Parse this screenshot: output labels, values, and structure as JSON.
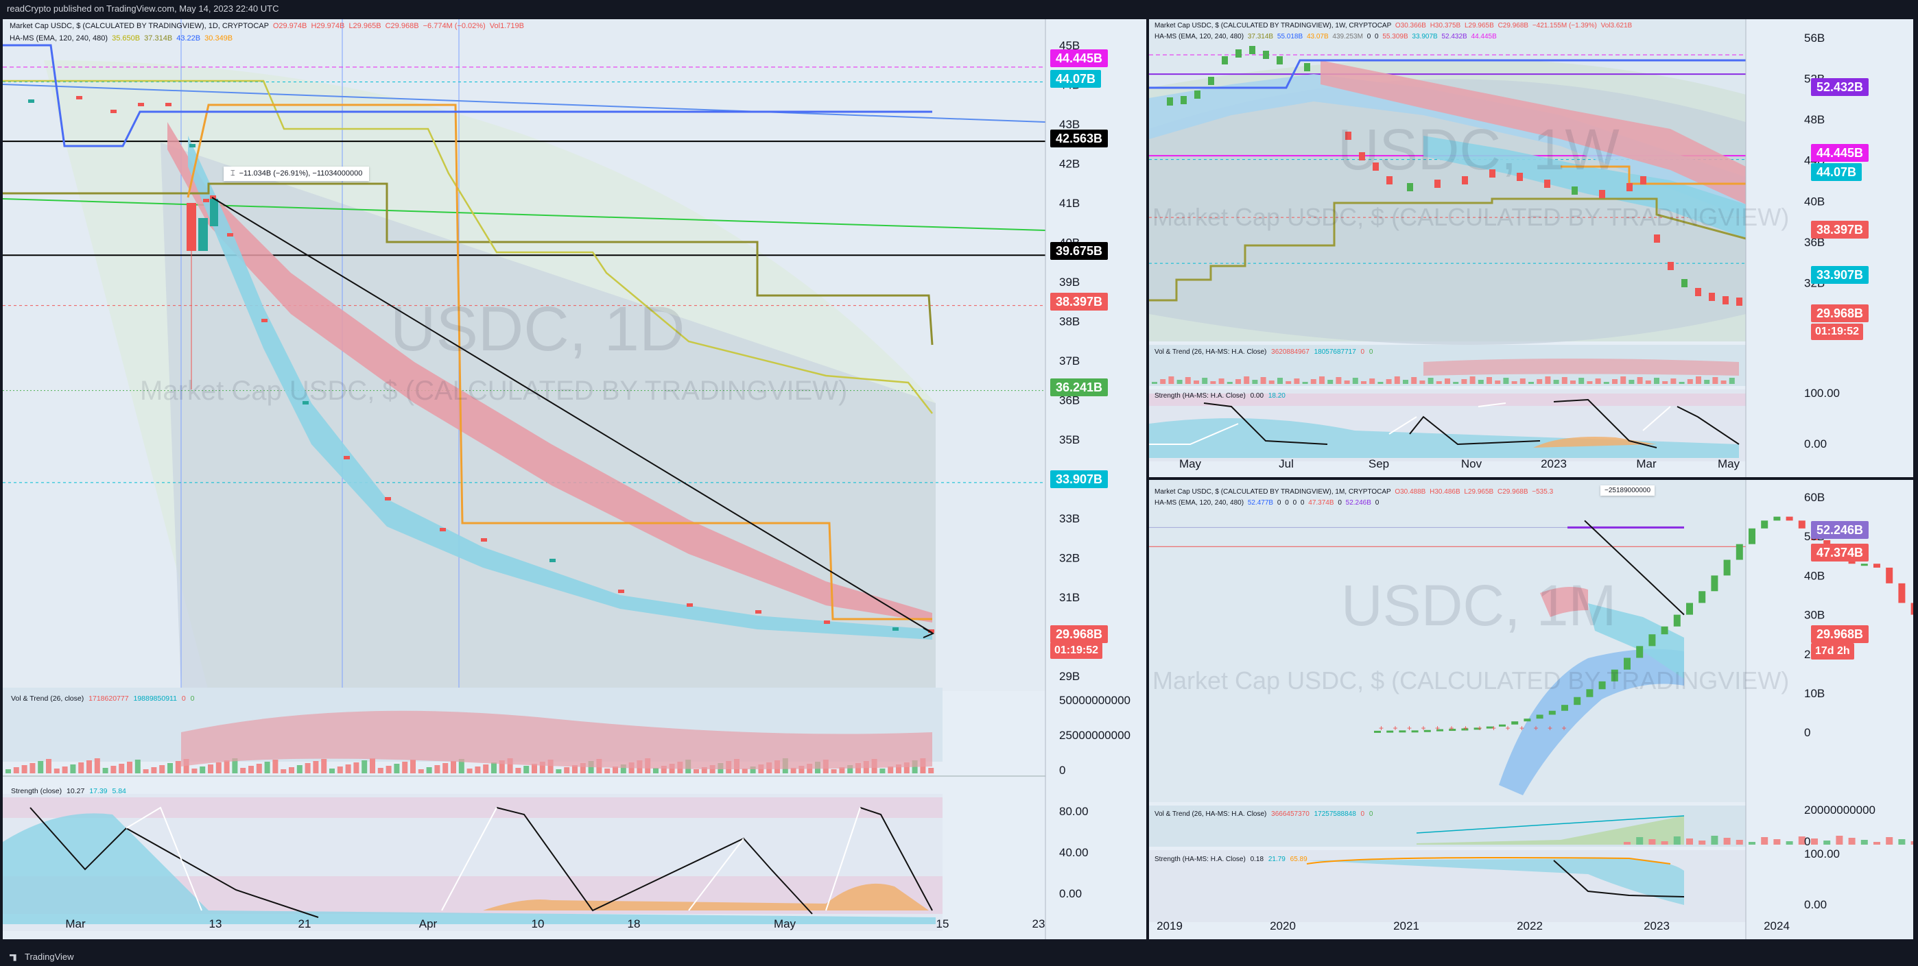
{
  "topbar": {
    "text": "readCrypto published on TradingView.com, May 14, 2023 22:40 UTC"
  },
  "bottombar": {
    "text": "TradingView"
  },
  "colors": {
    "background": "#131722",
    "panel": "#e6eef6",
    "up": "#26a69a",
    "down": "#ef5350",
    "magenta": "#e91eef",
    "cyan": "#00bcd4",
    "black": "#000000",
    "red_tag": "#f05a5a",
    "green_tag": "#4caf50",
    "purple": "#8a2be2",
    "orange": "#ff9800",
    "blue": "#2962ff"
  },
  "daily": {
    "header": {
      "symbol": "Market Cap USDC, $ (CALCULATED BY TRADINGVIEW), 1D, CRYPTOCAP",
      "o": "O29.974B",
      "h": "H29.974B",
      "l": "L29.965B",
      "c": "C29.968B",
      "chg": "−6.774M (−0.02%)",
      "vol": "Vol1.719B"
    },
    "hams": {
      "label": "HA-MS (EMA, 120, 240, 480)",
      "v1": "35.650B",
      "v2": "37.314B",
      "v3": "43.22B",
      "v4": "30.349B"
    },
    "watermark_big": "USDC, 1D",
    "watermark_small": "Market Cap USDC, $ (CALCULATED BY TRADINGVIEW)",
    "tooltip": "−11.034B (−26.91%), −11034000000",
    "vol_header": {
      "label": "Vol & Trend (26, close)",
      "v1": "1718620777",
      "v2": "19889850911",
      "v3": "0",
      "v4": "0"
    },
    "strength_header": {
      "label": "Strength (close)",
      "v1": "10.27",
      "v2": "17.39",
      "v3": "5.84"
    },
    "price_axis": [
      "45B",
      "44B",
      "43B",
      "42B",
      "41B",
      "40B",
      "39B",
      "38B",
      "37B",
      "36B",
      "35B",
      "34B",
      "33B",
      "32B",
      "31B",
      "30B",
      "29B"
    ],
    "vol_axis": [
      "50000000000",
      "25000000000",
      "0"
    ],
    "strength_axis": [
      "80.00",
      "40.00",
      "0.00"
    ],
    "time_axis": [
      "Mar",
      "13",
      "21",
      "Apr",
      "10",
      "18",
      "May",
      "15",
      "23"
    ],
    "tags": [
      {
        "text": "44.445B",
        "color": "#e91eef"
      },
      {
        "text": "44.07B",
        "color": "#00bcd4"
      },
      {
        "text": "42.563B",
        "color": "#000000"
      },
      {
        "text": "39.675B",
        "color": "#000000"
      },
      {
        "text": "38.397B",
        "color": "#f05a5a"
      },
      {
        "text": "36.241B",
        "color": "#4caf50"
      },
      {
        "text": "33.907B",
        "color": "#00bcd4"
      },
      {
        "text": "29.968B",
        "color": "#f05a5a"
      }
    ],
    "countdown": "01:19:52"
  },
  "weekly": {
    "header": {
      "symbol": "Market Cap USDC, $ (CALCULATED BY TRADINGVIEW), 1W, CRYPTOCAP",
      "o": "O30.366B",
      "h": "H30.375B",
      "l": "L29.965B",
      "c": "C29.968B",
      "chg": "−421.155M (−1.39%)",
      "vol": "Vol3.621B"
    },
    "hams": {
      "label": "HA-MS (EMA, 120, 240, 480)",
      "v1": "37.314B",
      "v2": "55.018B",
      "v3": "43.07B",
      "v4": "439.253M",
      "v5": "0",
      "v6": "0",
      "v7": "55.309B",
      "v8": "33.907B",
      "v9": "52.432B",
      "v10": "44.445B"
    },
    "watermark_big": "USDC, 1W",
    "watermark_small": "Market Cap USDC, $ (CALCULATED BY TRADINGVIEW)",
    "vol_header": {
      "label": "Vol & Trend (26, HA-MS: H.A. Close)",
      "v1": "3620884967",
      "v2": "18057687717",
      "v3": "0",
      "v4": "0"
    },
    "strength_header": {
      "label": "Strength (HA-MS: H.A. Close)",
      "v1": "0.00",
      "v2": "18.20"
    },
    "price_axis": [
      "56B",
      "52B",
      "48B",
      "44B",
      "40B",
      "36B",
      "32B"
    ],
    "strength_axis": [
      "100.00",
      "0.00"
    ],
    "time_axis": [
      "May",
      "Jul",
      "Sep",
      "Nov",
      "2023",
      "Mar",
      "May"
    ],
    "tags": [
      {
        "text": "52.432B",
        "color": "#8a2be2"
      },
      {
        "text": "44.445B",
        "color": "#e91eef"
      },
      {
        "text": "44.07B",
        "color": "#00bcd4"
      },
      {
        "text": "38.397B",
        "color": "#f05a5a"
      },
      {
        "text": "33.907B",
        "color": "#00bcd4"
      },
      {
        "text": "29.968B",
        "color": "#f05a5a"
      }
    ],
    "countdown": "01:19:52"
  },
  "monthly": {
    "header": {
      "symbol": "Market Cap USDC, $ (CALCULATED BY TRADINGVIEW), 1M, CRYPTOCAP",
      "o": "O30.488B",
      "h": "H30.486B",
      "l": "L29.965B",
      "c": "C29.968B",
      "chg": "−535.3"
    },
    "hams": {
      "label": "HA-MS (EMA, 120, 240, 480)",
      "v1": "52.477B",
      "v2": "0",
      "v3": "0",
      "v4": "0",
      "v5": "0",
      "v6": "47.374B",
      "v7": "0",
      "v8": "52.246B",
      "v9": "0"
    },
    "tooltip": "−25189000000",
    "watermark_big": "USDC, 1M",
    "watermark_small": "Market Cap USDC, $ (CALCULATED BY TRADINGVIEW)",
    "vol_header": {
      "label": "Vol & Trend (26, HA-MS: H.A. Close)",
      "v1": "3666457370",
      "v2": "17257588848",
      "v3": "0",
      "v4": "0"
    },
    "strength_header": {
      "label": "Strength (HA-MS: H.A. Close)",
      "v1": "0.18",
      "v2": "21.79",
      "v3": "65.89"
    },
    "price_axis": [
      "60B",
      "50B",
      "40B",
      "30B",
      "20B",
      "10B",
      "0"
    ],
    "vol_axis": [
      "20000000000",
      "0"
    ],
    "strength_axis": [
      "100.00",
      "0.00"
    ],
    "time_axis": [
      "2019",
      "2020",
      "2021",
      "2022",
      "2023",
      "2024"
    ],
    "tags": [
      {
        "text": "52.246B",
        "color": "#8a6fd0"
      },
      {
        "text": "47.374B",
        "color": "#f05a5a"
      },
      {
        "text": "29.968B",
        "color": "#f05a5a"
      }
    ],
    "countdown": "17d 2h"
  },
  "chart_data": [
    {
      "type": "line",
      "title": "Market Cap USDC, $ (CALCULATED BY TRADINGVIEW), 1D, CRYPTOCAP",
      "x": [
        "2023-03-06",
        "2023-03-10",
        "2023-03-11",
        "2023-03-13",
        "2023-03-17",
        "2023-03-21",
        "2023-03-27",
        "2023-04-03",
        "2023-04-10",
        "2023-04-18",
        "2023-04-24",
        "2023-05-01",
        "2023-05-08",
        "2023-05-14"
      ],
      "series": [
        {
          "values": [
            43.6,
            41.5,
            40.4,
            41.0,
            38.5,
            36.3,
            35.0,
            32.9,
            32.6,
            31.8,
            30.9,
            30.6,
            30.1,
            29.97
          ]
        }
      ],
      "ylim": [
        29,
        45
      ],
      "horizontal_levels": [
        44.445,
        44.07,
        42.563,
        39.675,
        38.397,
        36.241,
        33.907,
        29.968
      ]
    },
    {
      "type": "line",
      "title": "Market Cap USDC, $ (CALCULATED BY TRADINGVIEW), 1W, CRYPTOCAP",
      "x": [
        "2022-04",
        "2022-05",
        "2022-06",
        "2022-07",
        "2022-08",
        "2022-09",
        "2022-10",
        "2022-11",
        "2022-12",
        "2023-01",
        "2023-02",
        "2023-03",
        "2023-04",
        "2023-05"
      ],
      "series": [
        {
          "values": [
            50.0,
            52.5,
            55.0,
            55.3,
            54.0,
            50.5,
            46.5,
            43.7,
            44.3,
            43.5,
            42.0,
            38.0,
            33.0,
            29.97
          ]
        }
      ],
      "ylim": [
        28,
        58
      ],
      "horizontal_levels": [
        52.432,
        44.445,
        44.07,
        38.397,
        33.907,
        29.968
      ]
    },
    {
      "type": "bar",
      "title": "Market Cap USDC, $ (CALCULATED BY TRADINGVIEW), 1M, CRYPTOCAP",
      "x": [
        "2019",
        "2020",
        "2021",
        "2022",
        "2023"
      ],
      "series": [
        {
          "values": [
            0.5,
            0.8,
            10.0,
            49.0,
            29.97
          ]
        }
      ],
      "ylim": [
        0,
        60
      ],
      "horizontal_levels": [
        52.246,
        47.374,
        29.968
      ]
    }
  ]
}
